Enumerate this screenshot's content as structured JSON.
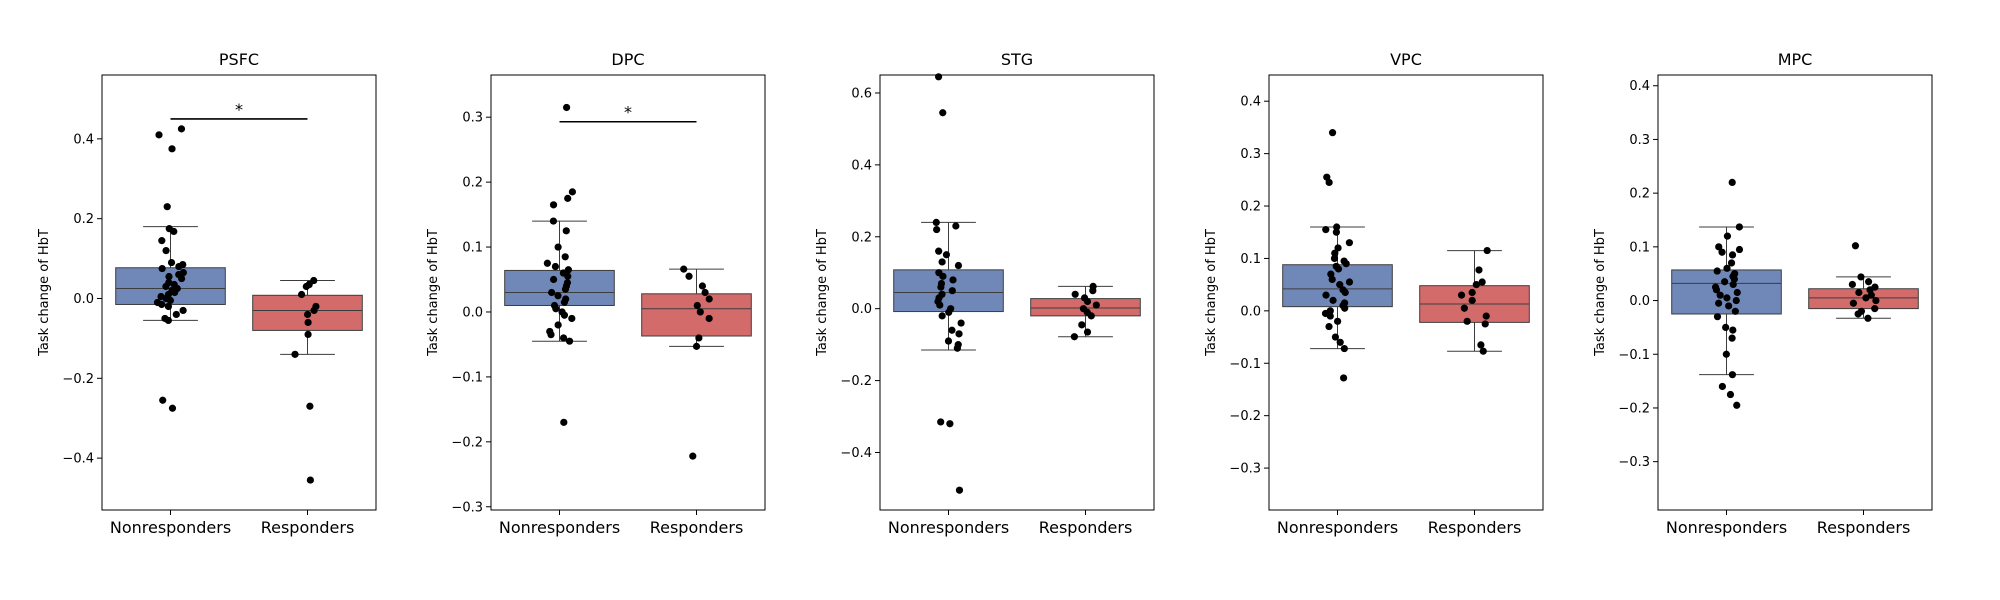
{
  "figure": {
    "ylabel": "Task change of HbT"
  },
  "colors": {
    "nonresponders": "#7088b8",
    "responders": "#d46b6b",
    "points": "#000000"
  },
  "chart_data": [
    {
      "type": "box",
      "title": "PSFC",
      "categories": [
        "Nonresponders",
        "Responders"
      ],
      "ylabel": "Task change of HbT",
      "ylim": [
        -0.53,
        0.56
      ],
      "yticks": [
        -0.4,
        -0.2,
        0.0,
        0.2,
        0.4
      ],
      "significance": {
        "between": [
          0,
          1
        ],
        "label": "*",
        "y": 0.45
      },
      "series": [
        {
          "name": "Nonresponders",
          "box": {
            "q1": -0.015,
            "median": 0.025,
            "q3": 0.077,
            "whisker_low": -0.055,
            "whisker_high": 0.18
          },
          "points": [
            0.425,
            0.41,
            0.375,
            0.23,
            0.175,
            0.168,
            0.145,
            0.12,
            0.09,
            0.085,
            0.08,
            0.075,
            0.065,
            0.06,
            0.055,
            0.05,
            0.04,
            0.035,
            0.03,
            0.025,
            0.02,
            0.015,
            0.01,
            0.005,
            0.0,
            -0.005,
            -0.01,
            -0.015,
            -0.02,
            -0.03,
            -0.04,
            -0.05,
            -0.055,
            -0.255,
            -0.275
          ]
        },
        {
          "name": "Responders",
          "box": {
            "q1": -0.08,
            "median": -0.03,
            "q3": 0.008,
            "whisker_low": -0.14,
            "whisker_high": 0.045
          },
          "points": [
            0.045,
            0.035,
            0.03,
            0.01,
            -0.02,
            -0.03,
            -0.04,
            -0.06,
            -0.09,
            -0.14,
            -0.27,
            -0.455
          ]
        }
      ]
    },
    {
      "type": "box",
      "title": "DPC",
      "categories": [
        "Nonresponders",
        "Responders"
      ],
      "ylabel": "Task change of HbT",
      "ylim": [
        -0.305,
        0.365
      ],
      "yticks": [
        -0.3,
        -0.2,
        -0.1,
        0.0,
        0.1,
        0.2,
        0.3
      ],
      "significance": {
        "between": [
          0,
          1
        ],
        "label": "*",
        "y": 0.293
      },
      "series": [
        {
          "name": "Nonresponders",
          "box": {
            "q1": 0.01,
            "median": 0.03,
            "q3": 0.064,
            "whisker_low": -0.045,
            "whisker_high": 0.14
          },
          "points": [
            0.315,
            0.185,
            0.175,
            0.165,
            0.14,
            0.125,
            0.1,
            0.085,
            0.075,
            0.07,
            0.065,
            0.06,
            0.055,
            0.05,
            0.045,
            0.04,
            0.035,
            0.03,
            0.025,
            0.02,
            0.015,
            0.01,
            0.005,
            0.0,
            -0.005,
            -0.01,
            -0.02,
            -0.03,
            -0.035,
            -0.04,
            -0.045,
            -0.17
          ]
        },
        {
          "name": "Responders",
          "box": {
            "q1": -0.037,
            "median": 0.005,
            "q3": 0.028,
            "whisker_low": -0.053,
            "whisker_high": 0.066
          },
          "points": [
            0.066,
            0.055,
            0.04,
            0.03,
            0.02,
            0.01,
            0.0,
            -0.01,
            -0.04,
            -0.053,
            -0.222
          ]
        }
      ]
    },
    {
      "type": "box",
      "title": "STG",
      "categories": [
        "Nonresponders",
        "Responders"
      ],
      "ylabel": "Task change of HbT",
      "ylim": [
        -0.56,
        0.65
      ],
      "yticks": [
        -0.4,
        -0.2,
        0.0,
        0.2,
        0.4,
        0.6
      ],
      "series": [
        {
          "name": "Nonresponders",
          "box": {
            "q1": -0.008,
            "median": 0.045,
            "q3": 0.108,
            "whisker_low": -0.115,
            "whisker_high": 0.24
          },
          "points": [
            0.645,
            0.545,
            0.24,
            0.23,
            0.22,
            0.16,
            0.15,
            0.13,
            0.12,
            0.1,
            0.09,
            0.08,
            0.07,
            0.06,
            0.05,
            0.04,
            0.03,
            0.02,
            0.01,
            0.0,
            -0.01,
            -0.02,
            -0.04,
            -0.06,
            -0.07,
            -0.09,
            -0.1,
            -0.11,
            -0.315,
            -0.32,
            -0.505
          ]
        },
        {
          "name": "Responders",
          "box": {
            "q1": -0.02,
            "median": 0.002,
            "q3": 0.028,
            "whisker_low": -0.078,
            "whisker_high": 0.062
          },
          "points": [
            0.062,
            0.05,
            0.04,
            0.03,
            0.02,
            0.01,
            0.0,
            -0.01,
            -0.02,
            -0.045,
            -0.065,
            -0.078
          ]
        }
      ]
    },
    {
      "type": "box",
      "title": "VPC",
      "categories": [
        "Nonresponders",
        "Responders"
      ],
      "ylabel": "Task change of HbT",
      "ylim": [
        -0.38,
        0.45
      ],
      "yticks": [
        -0.3,
        -0.2,
        -0.1,
        0.0,
        0.1,
        0.2,
        0.3,
        0.4
      ],
      "series": [
        {
          "name": "Nonresponders",
          "box": {
            "q1": 0.008,
            "median": 0.042,
            "q3": 0.088,
            "whisker_low": -0.072,
            "whisker_high": 0.16
          },
          "points": [
            0.34,
            0.255,
            0.245,
            0.16,
            0.155,
            0.15,
            0.13,
            0.12,
            0.11,
            0.1,
            0.095,
            0.09,
            0.085,
            0.08,
            0.07,
            0.06,
            0.055,
            0.05,
            0.04,
            0.035,
            0.03,
            0.02,
            0.015,
            0.01,
            0.005,
            0.0,
            -0.005,
            -0.01,
            -0.02,
            -0.03,
            -0.05,
            -0.06,
            -0.072,
            -0.128
          ]
        },
        {
          "name": "Responders",
          "box": {
            "q1": -0.022,
            "median": 0.013,
            "q3": 0.048,
            "whisker_low": -0.077,
            "whisker_high": 0.115
          },
          "points": [
            0.115,
            0.078,
            0.055,
            0.05,
            0.035,
            0.03,
            0.02,
            0.005,
            -0.01,
            -0.02,
            -0.025,
            -0.065,
            -0.077
          ]
        }
      ]
    },
    {
      "type": "box",
      "title": "MPC",
      "categories": [
        "Nonresponders",
        "Responders"
      ],
      "ylabel": "Task change of HbT",
      "ylim": [
        -0.39,
        0.42
      ],
      "yticks": [
        -0.3,
        -0.2,
        -0.1,
        0.0,
        0.1,
        0.2,
        0.3,
        0.4
      ],
      "series": [
        {
          "name": "Nonresponders",
          "box": {
            "q1": -0.025,
            "median": 0.032,
            "q3": 0.057,
            "whisker_low": -0.138,
            "whisker_high": 0.137
          },
          "points": [
            0.22,
            0.137,
            0.12,
            0.1,
            0.095,
            0.09,
            0.085,
            0.07,
            0.06,
            0.055,
            0.05,
            0.045,
            0.04,
            0.035,
            0.03,
            0.025,
            0.02,
            0.015,
            0.01,
            0.005,
            0.0,
            -0.005,
            -0.01,
            -0.02,
            -0.03,
            -0.05,
            -0.055,
            -0.07,
            -0.1,
            -0.138,
            -0.16,
            -0.175,
            -0.195
          ]
        },
        {
          "name": "Responders",
          "box": {
            "q1": -0.015,
            "median": 0.005,
            "q3": 0.022,
            "whisker_low": -0.033,
            "whisker_high": 0.044
          },
          "points": [
            0.102,
            0.044,
            0.035,
            0.03,
            0.025,
            0.02,
            0.015,
            0.01,
            0.005,
            0.0,
            -0.005,
            -0.015,
            -0.02,
            -0.025,
            -0.033
          ]
        }
      ]
    }
  ]
}
